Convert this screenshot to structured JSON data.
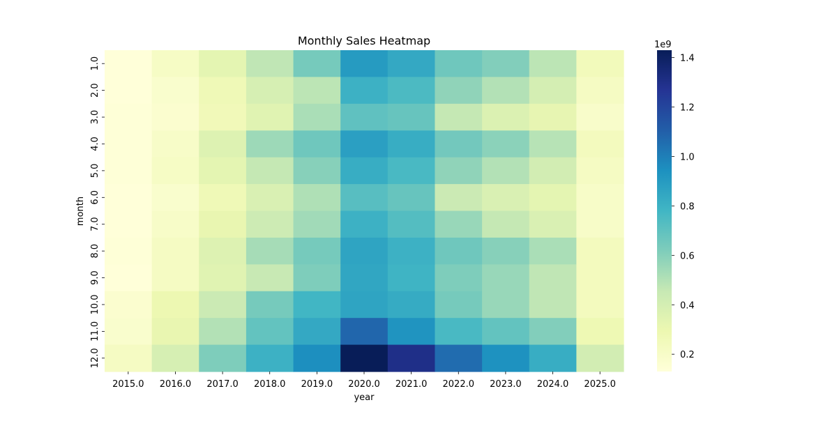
{
  "chart_data": {
    "type": "heatmap",
    "title": "Monthly Sales Heatmap",
    "xlabel": "year",
    "ylabel": "month",
    "x_categories": [
      "2015.0",
      "2016.0",
      "2017.0",
      "2018.0",
      "2019.0",
      "2020.0",
      "2021.0",
      "2022.0",
      "2023.0",
      "2024.0",
      "2025.0"
    ],
    "y_categories": [
      "1.0",
      "2.0",
      "3.0",
      "4.0",
      "5.0",
      "6.0",
      "7.0",
      "8.0",
      "9.0",
      "10.0",
      "11.0",
      "12.0"
    ],
    "values": [
      [
        130000000,
        210000000,
        330000000,
        470000000,
        640000000,
        900000000,
        840000000,
        660000000,
        610000000,
        480000000,
        250000000
      ],
      [
        130000000,
        180000000,
        270000000,
        390000000,
        480000000,
        800000000,
        750000000,
        580000000,
        500000000,
        400000000,
        220000000
      ],
      [
        140000000,
        170000000,
        260000000,
        350000000,
        520000000,
        700000000,
        680000000,
        460000000,
        370000000,
        320000000,
        190000000
      ],
      [
        140000000,
        200000000,
        360000000,
        550000000,
        660000000,
        880000000,
        820000000,
        650000000,
        590000000,
        490000000,
        240000000
      ],
      [
        140000000,
        210000000,
        330000000,
        460000000,
        600000000,
        820000000,
        760000000,
        580000000,
        500000000,
        410000000,
        220000000
      ],
      [
        130000000,
        180000000,
        270000000,
        380000000,
        510000000,
        720000000,
        680000000,
        440000000,
        380000000,
        330000000,
        200000000
      ],
      [
        130000000,
        200000000,
        310000000,
        430000000,
        540000000,
        800000000,
        730000000,
        560000000,
        460000000,
        380000000,
        200000000
      ],
      [
        140000000,
        220000000,
        360000000,
        530000000,
        640000000,
        860000000,
        800000000,
        660000000,
        600000000,
        520000000,
        240000000
      ],
      [
        130000000,
        220000000,
        350000000,
        450000000,
        620000000,
        850000000,
        790000000,
        620000000,
        560000000,
        470000000,
        240000000
      ],
      [
        170000000,
        290000000,
        440000000,
        640000000,
        780000000,
        860000000,
        830000000,
        640000000,
        560000000,
        470000000,
        240000000
      ],
      [
        180000000,
        310000000,
        500000000,
        690000000,
        840000000,
        1080000000,
        930000000,
        760000000,
        690000000,
        610000000,
        280000000
      ],
      [
        220000000,
        390000000,
        620000000,
        800000000,
        950000000,
        1430000000,
        1300000000,
        1060000000,
        940000000,
        820000000,
        410000000
      ]
    ],
    "colorbar": {
      "min": 130000000,
      "max": 1430000000,
      "ticks": [
        0.2,
        0.4,
        0.6,
        0.8,
        1.0,
        1.2,
        1.4
      ],
      "tick_labels": [
        "0.2",
        "0.4",
        "0.6",
        "0.8",
        "1.0",
        "1.2",
        "1.4"
      ],
      "multiplier_label": "1e9",
      "colormap": "YlGnBu",
      "colormap_stops": [
        "#ffffd9",
        "#edf8b1",
        "#c7e9b4",
        "#7fcdbb",
        "#41b6c4",
        "#1d91c0",
        "#225ea8",
        "#253494",
        "#081d58"
      ]
    },
    "grid": false
  }
}
